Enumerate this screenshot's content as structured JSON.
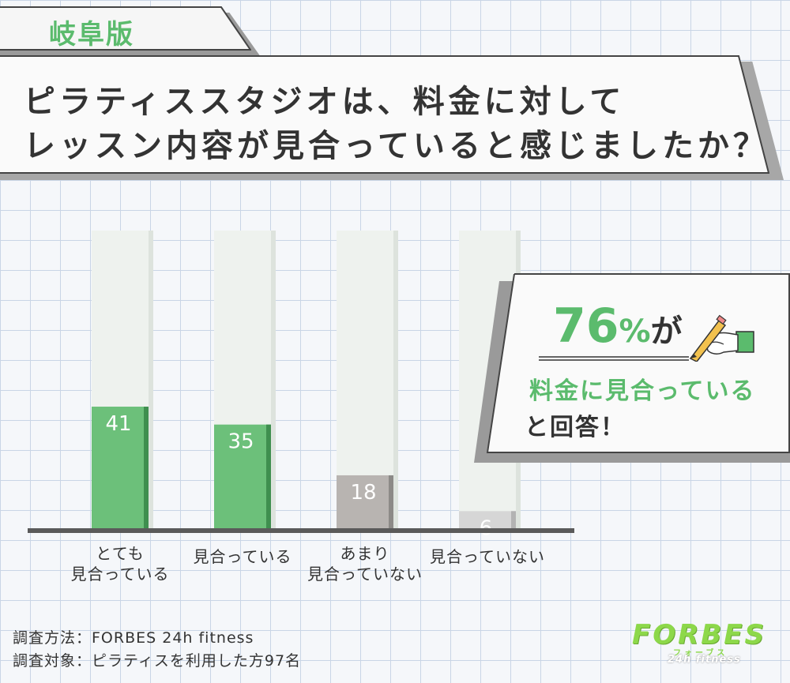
{
  "region_tag": "岐阜版",
  "title": {
    "line1": "ピラティススタジオは、料金に対して",
    "line2": "レッスン内容が見合っていると感じましたか？"
  },
  "chart_data": {
    "type": "bar",
    "categories": [
      "とても\n見合っている",
      "見合っている",
      "あまり\n見合っていない",
      "見合っていない"
    ],
    "values": [
      41,
      35,
      18,
      6
    ],
    "ylim": [
      0,
      100
    ],
    "bar_colors": [
      "#6cc07a",
      "#6cc07a",
      "#b8b4b1",
      "#d6d6d6"
    ],
    "bar_shade_colors": [
      "#3f8f4f",
      "#3f8f4f",
      "#8c8a87",
      "#b3b3b3"
    ],
    "track_color": "#eef2ee",
    "grid": true
  },
  "callout": {
    "percent_number": "76",
    "percent_unit": "%",
    "particle": "が",
    "line2": "料金に見合っている",
    "line3": "と回答！",
    "pen_icon": "pen-writing-hand-icon"
  },
  "footer": {
    "method": "調査方法：FORBES 24h fitness",
    "target": "調査対象：ピラティスを利用した方97名"
  },
  "logo": {
    "main": "FORBES",
    "kana": "フォーブス",
    "sub": "24h fitness"
  },
  "colors": {
    "accent_green": "#5bbb6d",
    "logo_green": "#8dd84a",
    "grid_line": "#c9d5e6"
  }
}
